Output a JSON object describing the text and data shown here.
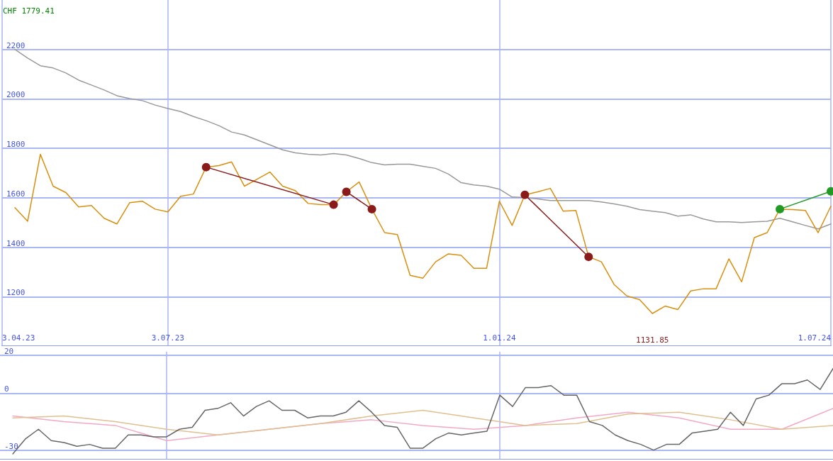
{
  "chart_data": [
    {
      "type": "line",
      "annotations": [
        "CHF 1779.41",
        {
          "text": "1131.85",
          "x": "2024-03-25",
          "y": 1132
        }
      ],
      "x": [
        "2023-04-10",
        "2023-04-17",
        "2023-04-24",
        "2023-05-01",
        "2023-05-08",
        "2023-05-15",
        "2023-05-22",
        "2023-05-29",
        "2023-06-05",
        "2023-06-12",
        "2023-06-19",
        "2023-06-26",
        "2023-07-03",
        "2023-07-10",
        "2023-07-17",
        "2023-07-24",
        "2023-07-31",
        "2023-08-07",
        "2023-08-14",
        "2023-08-21",
        "2023-08-28",
        "2023-09-04",
        "2023-09-11",
        "2023-09-18",
        "2023-09-25",
        "2023-10-02",
        "2023-10-09",
        "2023-10-16",
        "2023-10-23",
        "2023-10-30",
        "2023-11-06",
        "2023-11-13",
        "2023-11-20",
        "2023-11-27",
        "2023-12-04",
        "2023-12-11",
        "2023-12-18",
        "2023-12-25",
        "2024-01-01",
        "2024-01-08",
        "2024-01-15",
        "2024-01-22",
        "2024-01-29",
        "2024-02-05",
        "2024-02-12",
        "2024-02-19",
        "2024-02-26",
        "2024-03-04",
        "2024-03-11",
        "2024-03-18",
        "2024-03-25",
        "2024-04-01",
        "2024-04-08",
        "2024-04-15",
        "2024-04-22",
        "2024-04-29",
        "2024-05-06",
        "2024-05-13",
        "2024-05-20",
        "2024-05-27",
        "2024-06-03",
        "2024-06-10",
        "2024-06-17",
        "2024-06-24",
        "2024-07-01"
      ],
      "series": [
        {
          "color": "#999999",
          "values": [
            2200,
            2165,
            2134,
            2125,
            2105,
            2076,
            2056,
            2036,
            2013,
            2001,
            1993,
            1975,
            1961,
            1949,
            1929,
            1912,
            1892,
            1866,
            1854,
            1834,
            1814,
            1794,
            1782,
            1776,
            1773,
            1779,
            1773,
            1759,
            1742,
            1733,
            1736,
            1736,
            1727,
            1719,
            1696,
            1661,
            1652,
            1647,
            1635,
            1603,
            1601,
            1595,
            1589,
            1589,
            1589,
            1589,
            1583,
            1575,
            1566,
            1552,
            1546,
            1540,
            1526,
            1531,
            1514,
            1503,
            1503,
            1500,
            1503,
            1505,
            1517,
            1503,
            1488,
            1474,
            1494
          ]
        },
        {
          "color": "#d98f0e",
          "values": [
            1560,
            1505,
            1776,
            1647,
            1621,
            1563,
            1569,
            1517,
            1494,
            1580,
            1586,
            1554,
            1543,
            1606,
            1615,
            1724,
            1730,
            1745,
            1647,
            1675,
            1704,
            1647,
            1629,
            1577,
            1572,
            1572,
            1624,
            1664,
            1554,
            1459,
            1451,
            1286,
            1275,
            1341,
            1373,
            1367,
            1315,
            1315,
            1586,
            1488,
            1612,
            1624,
            1638,
            1546,
            1549,
            1361,
            1341,
            1249,
            1203,
            1188,
            1132,
            1162,
            1148,
            1223,
            1232,
            1232,
            1353,
            1260,
            1439,
            1459,
            1554,
            1552,
            1549,
            1459,
            1566
          ]
        },
        {
          "color": "#8b1a1a",
          "x": [
            "2023-07-24",
            "2023-10-02"
          ],
          "values": [
            1724,
            1572
          ],
          "marker": "circle"
        },
        {
          "color": "#8b1a1a",
          "x": [
            "2023-10-09",
            "2023-10-23"
          ],
          "values": [
            1624,
            1554
          ],
          "marker": "circle"
        },
        {
          "color": "#8b1a1a",
          "x": [
            "2024-01-15",
            "2024-02-19"
          ],
          "values": [
            1612,
            1361
          ],
          "marker": "circle"
        },
        {
          "color": "#229922",
          "x": [
            "2024-06-03",
            "2024-07-01"
          ],
          "values": [
            1554,
            1626
          ],
          "marker": "circle"
        }
      ],
      "xlim": [
        "2023-04-03",
        "2024-07-01"
      ],
      "xticks": [
        {
          "value": "2023-04-03",
          "label": "3.04.23"
        },
        {
          "value": "2023-07-03",
          "label": "3.07.23"
        },
        {
          "value": "2024-01-01",
          "label": "1.01.24"
        },
        {
          "value": "2024-07-01",
          "label": "1.07.24"
        }
      ],
      "ylim": [
        1000,
        2400
      ],
      "yticks": [
        1200,
        1400,
        1600,
        1800,
        2000,
        2200
      ],
      "grid": true,
      "marker": "none"
    },
    {
      "type": "line",
      "x": [
        "2023-04-10",
        "2023-04-17",
        "2023-04-24",
        "2023-05-01",
        "2023-05-08",
        "2023-05-15",
        "2023-05-22",
        "2023-05-29",
        "2023-06-05",
        "2023-06-12",
        "2023-06-19",
        "2023-06-26",
        "2023-07-03",
        "2023-07-10",
        "2023-07-17",
        "2023-07-24",
        "2023-07-31",
        "2023-08-07",
        "2023-08-14",
        "2023-08-21",
        "2023-08-28",
        "2023-09-04",
        "2023-09-11",
        "2023-09-18",
        "2023-09-25",
        "2023-10-02",
        "2023-10-09",
        "2023-10-16",
        "2023-10-23",
        "2023-10-30",
        "2023-11-06",
        "2023-11-13",
        "2023-11-20",
        "2023-11-27",
        "2023-12-04",
        "2023-12-11",
        "2023-12-18",
        "2023-12-25",
        "2024-01-01",
        "2024-01-08",
        "2024-01-15",
        "2024-01-22",
        "2024-01-29",
        "2024-02-05",
        "2024-02-12",
        "2024-02-19",
        "2024-02-26",
        "2024-03-04",
        "2024-03-11",
        "2024-03-18",
        "2024-03-25",
        "2024-04-01",
        "2024-04-08",
        "2024-04-15",
        "2024-04-22",
        "2024-04-29",
        "2024-05-06",
        "2024-05-13",
        "2024-05-20",
        "2024-05-27",
        "2024-06-03",
        "2024-06-10",
        "2024-06-17",
        "2024-06-24",
        "2024-07-01"
      ],
      "series": [
        {
          "color": "#f4a8c4",
          "x": [
            "2023-04-10",
            "2023-05-08",
            "2023-06-05",
            "2023-07-03",
            "2023-07-31",
            "2023-08-28",
            "2023-09-25",
            "2023-10-23",
            "2023-11-20",
            "2023-12-18",
            "2024-01-15",
            "2024-02-12",
            "2024-03-11",
            "2024-04-08",
            "2024-05-06",
            "2024-06-03",
            "2024-07-01"
          ],
          "values": [
            -12,
            -15,
            -17,
            -25,
            -22,
            -19,
            -16,
            -14,
            -17,
            -19,
            -17,
            -13,
            -10,
            -13,
            -19,
            -19,
            -8
          ]
        },
        {
          "color": "#e0c090",
          "x": [
            "2023-04-10",
            "2023-05-08",
            "2023-06-05",
            "2023-07-03",
            "2023-07-31",
            "2023-08-28",
            "2023-09-25",
            "2023-10-23",
            "2023-11-20",
            "2023-12-18",
            "2024-01-15",
            "2024-02-12",
            "2024-03-11",
            "2024-04-08",
            "2024-05-06",
            "2024-06-03",
            "2024-07-01"
          ],
          "values": [
            -13,
            -12,
            -15,
            -19,
            -22,
            -19,
            -16,
            -12,
            -9,
            -13,
            -17,
            -16,
            -11,
            -10,
            -14,
            -19,
            -17
          ]
        },
        {
          "color": "#666666",
          "values": [
            -32,
            -24,
            -19,
            -25,
            -26,
            -28,
            -27,
            -29,
            -29,
            -22,
            -22,
            -23,
            -23,
            -19,
            -18,
            -9,
            -8,
            -5,
            -12,
            -7,
            -4,
            -9,
            -9,
            -13,
            -12,
            -12,
            -10,
            -4,
            -10,
            -17,
            -18,
            -29,
            -29,
            -24,
            -21,
            -22,
            -21,
            -20,
            -1,
            -7,
            3,
            3,
            4,
            -1,
            -1,
            -15,
            -17,
            -22,
            -25,
            -27,
            -30,
            -27,
            -27,
            -21,
            -20,
            -19,
            -10,
            -17,
            -3,
            -1,
            5,
            5,
            7,
            2,
            13
          ]
        }
      ],
      "xlim": [
        "2023-04-03",
        "2024-07-01"
      ],
      "xticks": [
        {
          "value": "2023-07-03",
          "label": null
        },
        {
          "value": "2024-01-01",
          "label": null
        }
      ],
      "ylim": [
        -35,
        22
      ],
      "yticks": [
        -30,
        0,
        20
      ],
      "grid": true,
      "marker": "none",
      "tick_labels": "y"
    }
  ]
}
